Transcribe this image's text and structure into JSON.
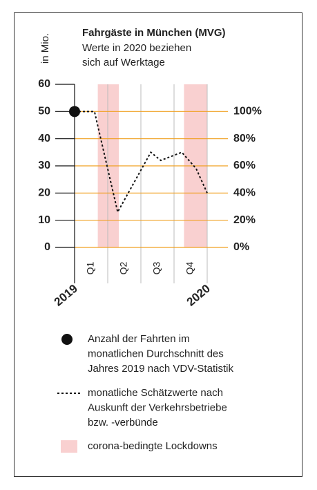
{
  "chart_data": {
    "type": "line",
    "title": "Fahrgäste in München (MVG)",
    "subtitle": [
      "Werte in 2020 beziehen",
      "sich auf Werktage"
    ],
    "ylabel": "in Mio.",
    "xlim": [
      0,
      12
    ],
    "xticks": [
      {
        "value": 0,
        "label": "2019"
      },
      {
        "value": 12,
        "label": "2020"
      }
    ],
    "quarter_bounds": [
      0,
      3,
      6,
      9,
      12
    ],
    "quarters": [
      "Q1",
      "Q2",
      "Q3",
      "Q4"
    ],
    "ylim": [
      0,
      60
    ],
    "yticks": [
      0,
      10,
      20,
      30,
      40,
      50,
      60
    ],
    "y2lim": [
      0,
      120
    ],
    "y2ticks": [
      {
        "value": 0,
        "label": "0%"
      },
      {
        "value": 20,
        "label": "20%"
      },
      {
        "value": 40,
        "label": "40%"
      },
      {
        "value": 60,
        "label": "60%"
      },
      {
        "value": 80,
        "label": "80%"
      },
      {
        "value": 100,
        "label": "100%"
      }
    ],
    "y2color": "#f0a020",
    "lockdowns": [
      [
        2.1,
        4.0
      ],
      [
        9.9,
        12
      ]
    ],
    "lockdown_color": "#f9d0d0",
    "point": {
      "x": 0,
      "value": 50,
      "color": "#111"
    },
    "series": [
      {
        "name": "monatliche Schätzwerte",
        "color": "#111",
        "x": [
          0,
          1.8,
          3.9,
          6.9,
          7.8,
          9.7,
          11,
          12
        ],
        "values": [
          50,
          50,
          13,
          35,
          32,
          35,
          29,
          20
        ]
      }
    ],
    "legend": [
      {
        "kind": "point",
        "label": [
          "Anzahl der Fahrten im",
          "monatlichen Durchschnitt des",
          "Jahres 2019 nach VDV-Statistik"
        ]
      },
      {
        "kind": "line",
        "label": [
          "monatliche Schätzwerte nach",
          "Auskunft der Verkehrsbetriebe",
          "bzw. -verbünde"
        ]
      },
      {
        "kind": "area",
        "label": [
          "corona-bedingte Lockdowns"
        ]
      }
    ]
  }
}
